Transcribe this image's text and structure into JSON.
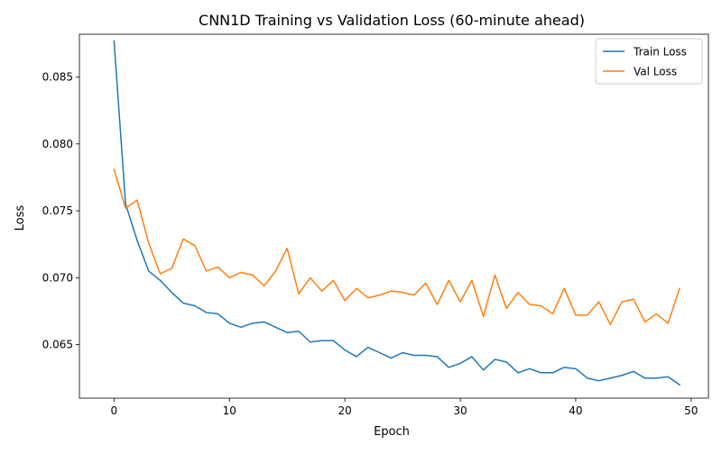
{
  "chart_data": {
    "type": "line",
    "title": "CNN1D Training vs Validation Loss (60-minute ahead)",
    "xlabel": "Epoch",
    "ylabel": "Loss",
    "xlim": [
      -3,
      51.5
    ],
    "ylim": [
      0.061,
      0.0882
    ],
    "xticks": [
      0,
      10,
      20,
      30,
      40,
      50
    ],
    "xtick_labels": [
      "0",
      "10",
      "20",
      "30",
      "40",
      "50"
    ],
    "yticks": [
      0.065,
      0.07,
      0.075,
      0.08,
      0.085
    ],
    "ytick_labels": [
      "0.065",
      "0.070",
      "0.075",
      "0.080",
      "0.085"
    ],
    "grid": false,
    "legend_position": "upper right",
    "x": [
      0,
      1,
      2,
      3,
      4,
      5,
      6,
      7,
      8,
      9,
      10,
      11,
      12,
      13,
      14,
      15,
      16,
      17,
      18,
      19,
      20,
      21,
      22,
      23,
      24,
      25,
      26,
      27,
      28,
      29,
      30,
      31,
      32,
      33,
      34,
      35,
      36,
      37,
      38,
      39,
      40,
      41,
      42,
      43,
      44,
      45,
      46,
      47,
      48,
      49
    ],
    "series": [
      {
        "name": "Train Loss",
        "color": "#1f77b4",
        "values": [
          0.0877,
          0.0755,
          0.0728,
          0.0705,
          0.0698,
          0.0689,
          0.0681,
          0.0679,
          0.0674,
          0.0673,
          0.0666,
          0.0663,
          0.0666,
          0.0667,
          0.0663,
          0.0659,
          0.066,
          0.0652,
          0.0653,
          0.0653,
          0.0646,
          0.0641,
          0.0648,
          0.0644,
          0.064,
          0.0644,
          0.0642,
          0.0642,
          0.0641,
          0.0633,
          0.0636,
          0.0641,
          0.0631,
          0.0639,
          0.0637,
          0.0629,
          0.0632,
          0.0629,
          0.0629,
          0.0633,
          0.0632,
          0.0625,
          0.0623,
          0.0625,
          0.0627,
          0.063,
          0.0625,
          0.0625,
          0.0626,
          0.062
        ]
      },
      {
        "name": "Val Loss",
        "color": "#ff7f0e",
        "values": [
          0.0781,
          0.0752,
          0.0758,
          0.0726,
          0.0703,
          0.0707,
          0.0729,
          0.0724,
          0.0705,
          0.0708,
          0.07,
          0.0704,
          0.0702,
          0.0694,
          0.0705,
          0.0722,
          0.0688,
          0.07,
          0.069,
          0.0698,
          0.0683,
          0.0692,
          0.0685,
          0.0687,
          0.069,
          0.0689,
          0.0687,
          0.0696,
          0.068,
          0.0698,
          0.0682,
          0.0698,
          0.0671,
          0.0702,
          0.0677,
          0.0689,
          0.068,
          0.0679,
          0.0673,
          0.0692,
          0.0672,
          0.0672,
          0.0682,
          0.0665,
          0.0682,
          0.0684,
          0.0667,
          0.0673,
          0.0666,
          0.0692
        ]
      }
    ]
  }
}
